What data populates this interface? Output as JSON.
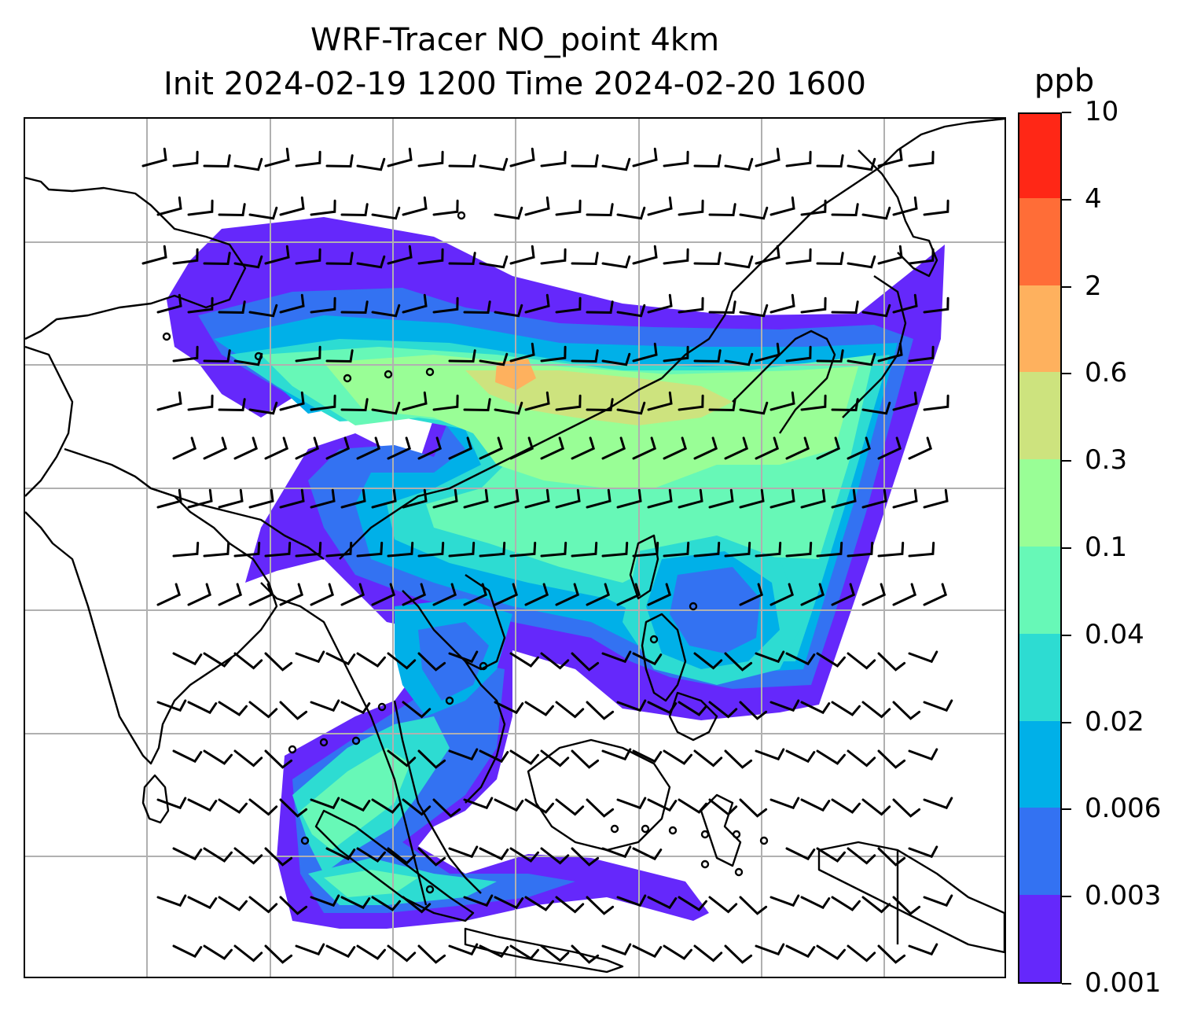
{
  "title": {
    "line1": "WRF-Tracer NO_point 4km",
    "line2": "Init 2024-02-19 1200 Time 2024-02-20 1600"
  },
  "map": {
    "variable": "NO tracer concentration",
    "overlay": "wind barbs",
    "coastlines": true,
    "gridlines": true,
    "gridline_color": "#b0b0b0",
    "coastline_color": "#000000"
  },
  "colorbar": {
    "unit": "ppb",
    "levels": [
      "0.001",
      "0.003",
      "0.006",
      "0.02",
      "0.04",
      "0.1",
      "0.3",
      "0.6",
      "2",
      "4",
      "10"
    ],
    "colors": [
      "#6528fb",
      "#3372f2",
      "#00b0e8",
      "#2ddcd2",
      "#67f8b7",
      "#99fe96",
      "#cde37e",
      "#feb15e",
      "#ff6d37",
      "#ff2716"
    ]
  }
}
